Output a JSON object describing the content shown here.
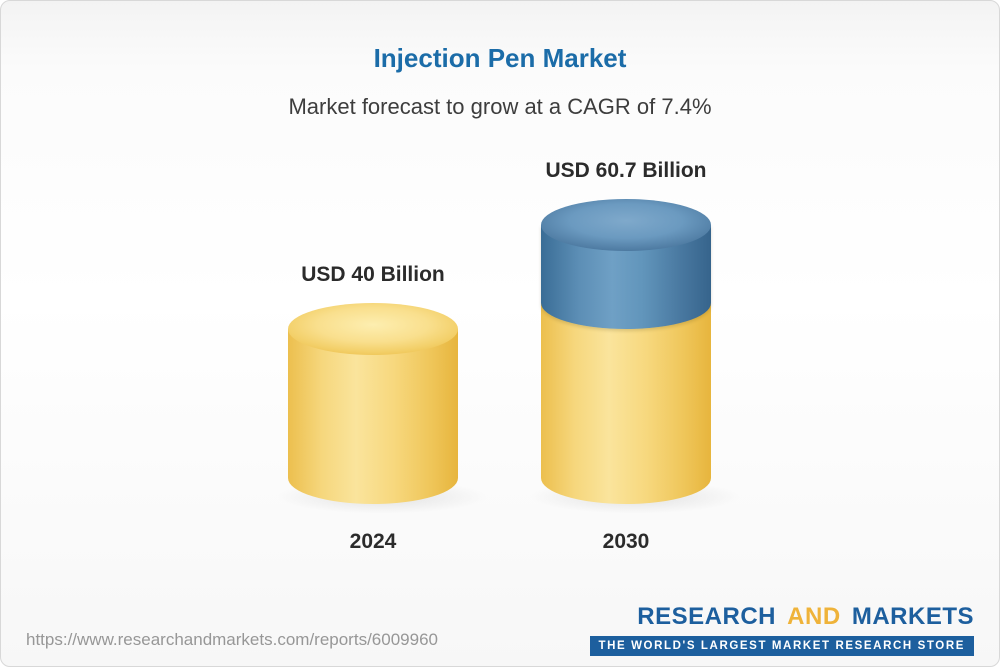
{
  "header": {
    "title": "Injection Pen Market",
    "subtitle": "Market forecast to grow at a CAGR of 7.4%"
  },
  "chart_data": {
    "type": "bar",
    "title": "Injection Pen Market",
    "subtitle": "Market forecast to grow at a CAGR of 7.4%",
    "cagr_percent": 7.4,
    "unit": "USD Billion",
    "categories": [
      "2024",
      "2030"
    ],
    "values": [
      40,
      60.7
    ],
    "value_labels": [
      "USD 40 Billion",
      "USD 60.7 Billion"
    ],
    "colors": {
      "base_segment": "#F5CE63",
      "growth_segment": "#4E81AB",
      "title_accent": "#1B6CA8"
    },
    "grid": false,
    "legend_position": "none"
  },
  "footer": {
    "report_url": "https://www.researchandmarkets.com/reports/6009960",
    "logo": {
      "word_research": "RESEARCH",
      "word_and": "AND",
      "word_markets": "MARKETS",
      "tagline": "THE WORLD'S LARGEST MARKET RESEARCH STORE"
    }
  }
}
